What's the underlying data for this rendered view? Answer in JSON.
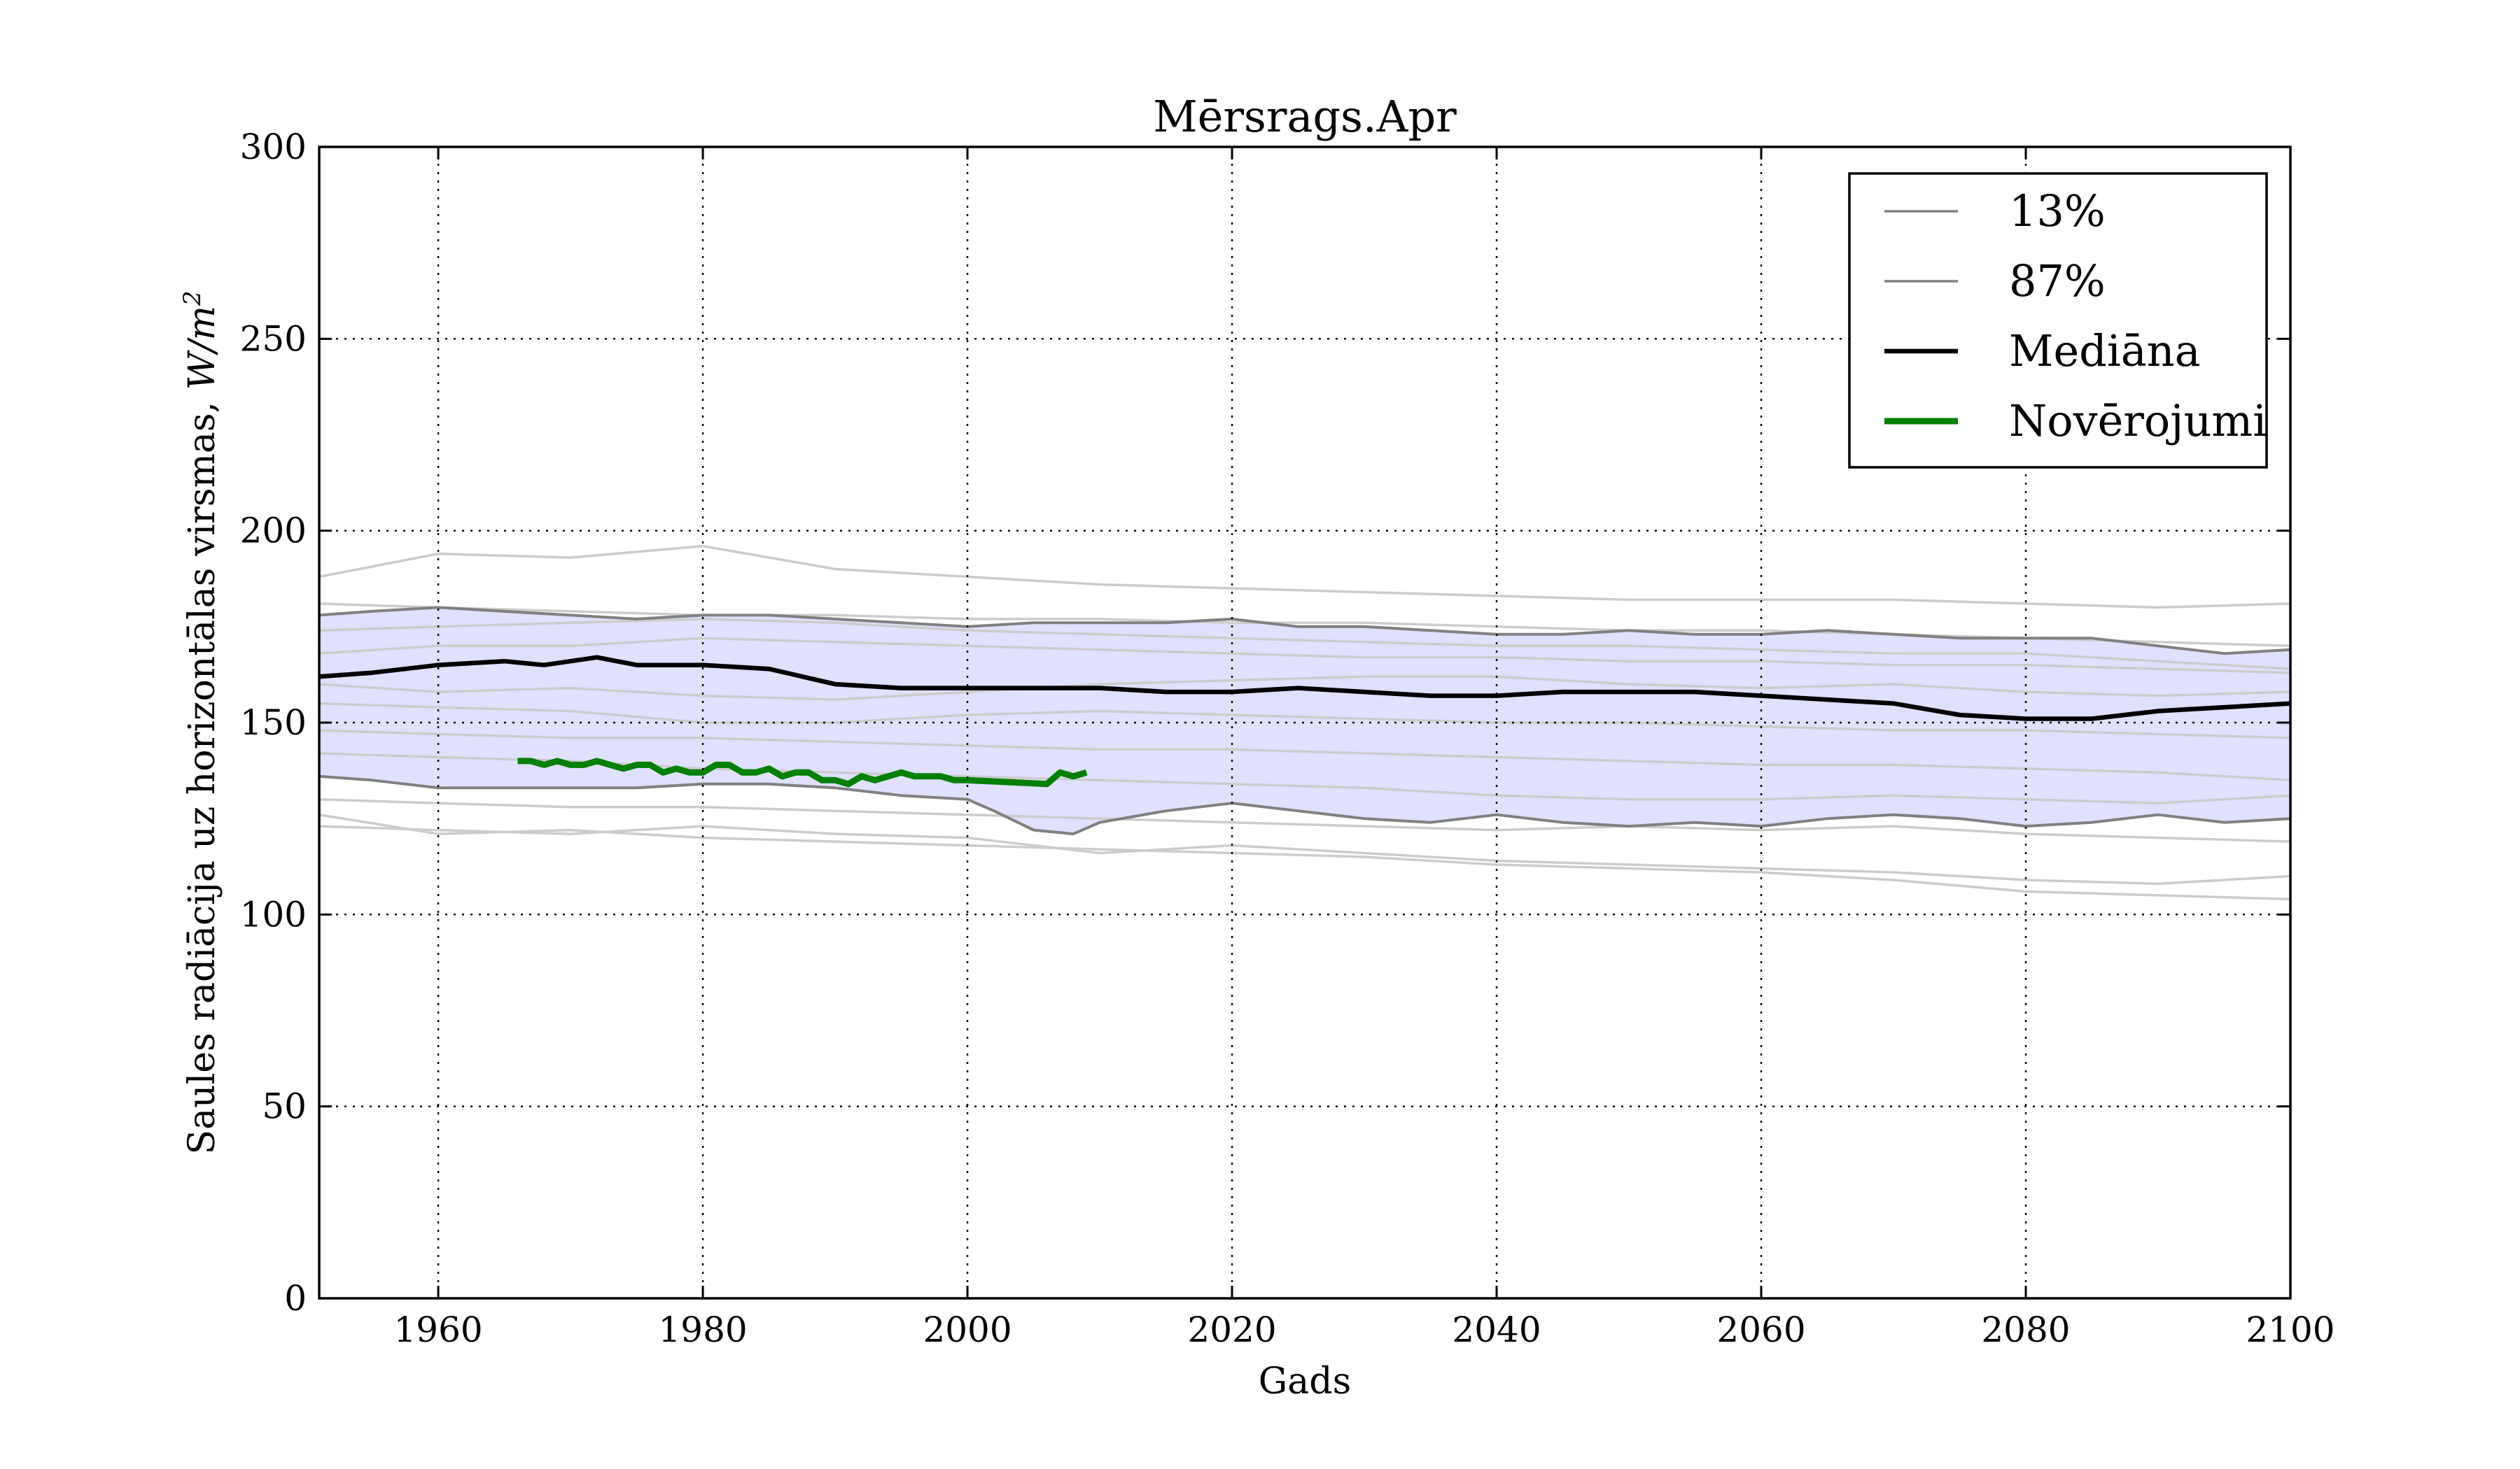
{
  "chart_data": {
    "type": "line",
    "title": "Mērsrags.Apr",
    "xlabel": "Gads",
    "ylabel": "Saules radiācija uz horizontālas virsmas, W/m²",
    "ylabel_text": "Saules radiācija uz horizontālas virsmas, ",
    "ylabel_unit_base": "W/m",
    "ylabel_unit_exp": "2",
    "xlim": [
      1951,
      2100
    ],
    "ylim": [
      0,
      300
    ],
    "xticks": [
      "1960",
      "1980",
      "2000",
      "2020",
      "2040",
      "2060",
      "2080",
      "2100"
    ],
    "yticks": [
      "0",
      "50",
      "100",
      "150",
      "200",
      "250",
      "300"
    ],
    "grid": true,
    "legend_position": "top-right",
    "band_color": "#e0e0ff",
    "legend": [
      {
        "label": "13%",
        "color": "#808080",
        "style": "thin"
      },
      {
        "label": "87%",
        "color": "#808080",
        "style": "thin"
      },
      {
        "label": "Mediāna",
        "color": "#000000",
        "style": "thick"
      },
      {
        "label": "Novērojumi",
        "color": "#008000",
        "style": "thick"
      }
    ],
    "series": [
      {
        "name": "13%",
        "color": "#808080",
        "x": [
          1951,
          1955,
          1960,
          1965,
          1970,
          1975,
          1980,
          1985,
          1990,
          1995,
          2000,
          2002,
          2005,
          2008,
          2010,
          2015,
          2020,
          2025,
          2030,
          2035,
          2040,
          2045,
          2050,
          2055,
          2060,
          2065,
          2070,
          2075,
          2080,
          2085,
          2090,
          2095,
          2100
        ],
        "y": [
          136,
          135,
          133,
          133,
          133,
          133,
          134,
          134,
          133,
          131,
          130,
          127,
          122,
          121,
          124,
          127,
          129,
          127,
          125,
          124,
          126,
          124,
          123,
          124,
          123,
          125,
          126,
          125,
          123,
          124,
          126,
          124,
          125
        ]
      },
      {
        "name": "87%",
        "color": "#808080",
        "x": [
          1951,
          1955,
          1960,
          1965,
          1970,
          1975,
          1980,
          1985,
          1990,
          1995,
          2000,
          2005,
          2010,
          2015,
          2020,
          2025,
          2030,
          2035,
          2040,
          2045,
          2050,
          2055,
          2060,
          2065,
          2070,
          2075,
          2080,
          2085,
          2090,
          2095,
          2100
        ],
        "y": [
          178,
          179,
          180,
          179,
          178,
          177,
          178,
          178,
          177,
          176,
          175,
          176,
          176,
          176,
          177,
          175,
          175,
          174,
          173,
          173,
          174,
          173,
          173,
          174,
          173,
          172,
          172,
          172,
          170,
          168,
          169
        ]
      },
      {
        "name": "Mediāna",
        "color": "#000000",
        "x": [
          1951,
          1955,
          1960,
          1965,
          1968,
          1972,
          1975,
          1980,
          1985,
          1990,
          1995,
          2000,
          2005,
          2010,
          2015,
          2020,
          2025,
          2030,
          2035,
          2040,
          2045,
          2050,
          2055,
          2060,
          2065,
          2070,
          2075,
          2080,
          2085,
          2090,
          2095,
          2100
        ],
        "y": [
          162,
          163,
          165,
          166,
          165,
          167,
          165,
          165,
          164,
          160,
          159,
          159,
          159,
          159,
          158,
          158,
          159,
          158,
          157,
          157,
          158,
          158,
          158,
          157,
          156,
          155,
          152,
          151,
          151,
          153,
          154,
          155
        ]
      },
      {
        "name": "Novērojumi",
        "color": "#008000",
        "x": [
          1966,
          1967,
          1968,
          1969,
          1970,
          1971,
          1972,
          1973,
          1974,
          1975,
          1976,
          1977,
          1978,
          1979,
          1980,
          1981,
          1982,
          1983,
          1984,
          1985,
          1986,
          1987,
          1988,
          1989,
          1990,
          1991,
          1992,
          1993,
          1994,
          1995,
          1996,
          1997,
          1998,
          1999,
          2000,
          2006,
          2007,
          2008,
          2009
        ],
        "y": [
          140,
          140,
          139,
          140,
          139,
          139,
          140,
          139,
          138,
          139,
          139,
          137,
          138,
          137,
          137,
          139,
          139,
          137,
          137,
          138,
          136,
          137,
          137,
          135,
          135,
          134,
          136,
          135,
          136,
          137,
          136,
          136,
          136,
          135,
          135,
          134,
          137,
          136,
          137
        ]
      }
    ],
    "ensemble_members": [
      {
        "x": [
          1951,
          1960,
          1970,
          1980,
          1990,
          2000,
          2010,
          2020,
          2030,
          2040,
          2050,
          2060,
          2070,
          2080,
          2090,
          2100
        ],
        "y": [
          188,
          194,
          193,
          196,
          190,
          188,
          186,
          185,
          184,
          183,
          182,
          182,
          182,
          181,
          180,
          181
        ]
      },
      {
        "x": [
          1951,
          1960,
          1970,
          1980,
          1990,
          2000,
          2010,
          2020,
          2030,
          2040,
          2050,
          2060,
          2070,
          2080,
          2090,
          2100
        ],
        "y": [
          181,
          180,
          179,
          178,
          178,
          177,
          177,
          176,
          176,
          175,
          174,
          174,
          173,
          172,
          171,
          170
        ]
      },
      {
        "x": [
          1951,
          1960,
          1970,
          1980,
          1990,
          2000,
          2010,
          2020,
          2030,
          2040,
          2050,
          2060,
          2070,
          2080,
          2090,
          2100
        ],
        "y": [
          174,
          175,
          176,
          177,
          176,
          174,
          173,
          172,
          171,
          170,
          170,
          169,
          168,
          168,
          166,
          164
        ]
      },
      {
        "x": [
          1951,
          1960,
          1970,
          1980,
          1990,
          2000,
          2010,
          2020,
          2030,
          2040,
          2050,
          2060,
          2070,
          2080,
          2090,
          2100
        ],
        "y": [
          168,
          170,
          170,
          172,
          171,
          170,
          169,
          168,
          167,
          167,
          166,
          166,
          165,
          165,
          164,
          163
        ]
      },
      {
        "x": [
          1951,
          1960,
          1970,
          1980,
          1990,
          2000,
          2010,
          2020,
          2030,
          2040,
          2050,
          2060,
          2070,
          2080,
          2090,
          2100
        ],
        "y": [
          160,
          158,
          159,
          157,
          156,
          158,
          160,
          161,
          162,
          162,
          160,
          159,
          160,
          158,
          157,
          158
        ]
      },
      {
        "x": [
          1951,
          1960,
          1970,
          1980,
          1990,
          2000,
          2010,
          2020,
          2030,
          2040,
          2050,
          2060,
          2070,
          2080,
          2090,
          2100
        ],
        "y": [
          155,
          154,
          153,
          150,
          150,
          152,
          153,
          152,
          151,
          150,
          150,
          149,
          148,
          148,
          147,
          146
        ]
      },
      {
        "x": [
          1951,
          1960,
          1970,
          1980,
          1990,
          2000,
          2010,
          2020,
          2030,
          2040,
          2050,
          2060,
          2070,
          2080,
          2090,
          2100
        ],
        "y": [
          148,
          147,
          146,
          146,
          145,
          144,
          143,
          143,
          142,
          141,
          140,
          139,
          139,
          138,
          137,
          135
        ]
      },
      {
        "x": [
          1951,
          1960,
          1970,
          1980,
          1990,
          2000,
          2010,
          2020,
          2030,
          2040,
          2050,
          2060,
          2070,
          2080,
          2090,
          2100
        ],
        "y": [
          142,
          141,
          140,
          138,
          137,
          136,
          135,
          134,
          133,
          131,
          130,
          130,
          131,
          130,
          129,
          131
        ]
      },
      {
        "x": [
          1951,
          1960,
          1970,
          1980,
          1990,
          2000,
          2010,
          2020,
          2030,
          2040,
          2050,
          2060,
          2070,
          2080,
          2090,
          2100
        ],
        "y": [
          130,
          129,
          128,
          128,
          127,
          126,
          125,
          124,
          123,
          122,
          123,
          122,
          123,
          121,
          120,
          119
        ]
      },
      {
        "x": [
          1951,
          1960,
          1970,
          1980,
          1990,
          2000,
          2010,
          2020,
          2030,
          2040,
          2050,
          2060,
          2070,
          2080,
          2090,
          2100
        ],
        "y": [
          123,
          122,
          121,
          123,
          121,
          120,
          116,
          118,
          116,
          114,
          113,
          112,
          111,
          109,
          108,
          110
        ]
      },
      {
        "x": [
          1951,
          1960,
          1970,
          1980,
          1990,
          2000,
          2010,
          2020,
          2030,
          2040,
          2050,
          2060,
          2070,
          2080,
          2090,
          2100
        ],
        "y": [
          126,
          121,
          122,
          120,
          119,
          118,
          117,
          116,
          115,
          113,
          112,
          111,
          109,
          106,
          105,
          104
        ]
      }
    ]
  }
}
